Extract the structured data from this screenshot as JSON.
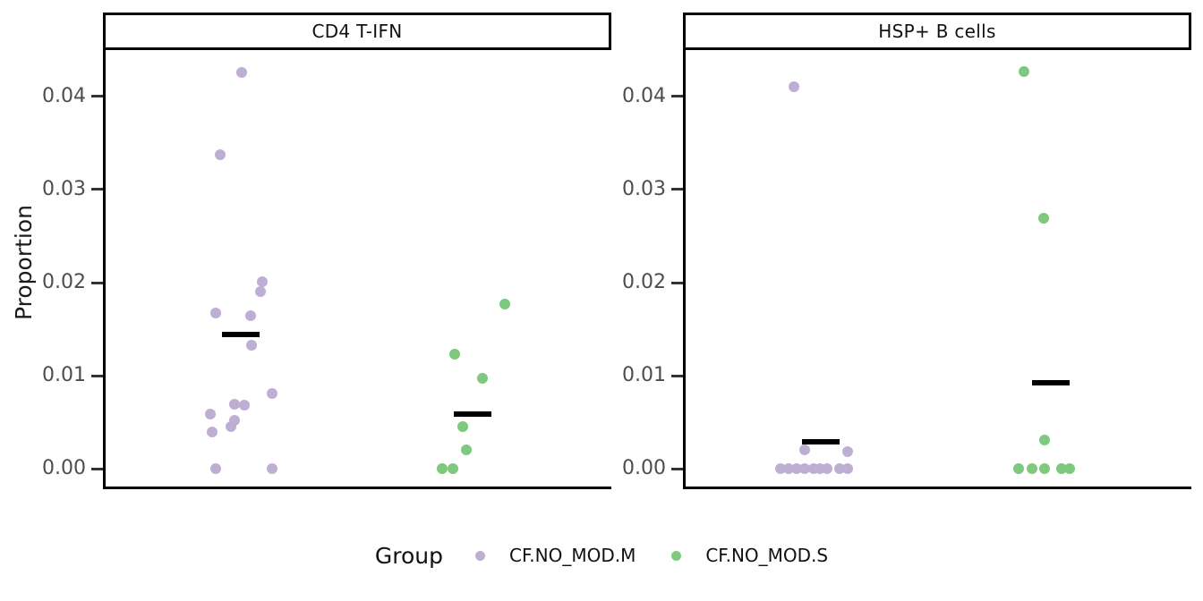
{
  "ylabel": "Proportion",
  "legend": {
    "title": "Group",
    "items": [
      {
        "label": "CF.NO_MOD.M",
        "color": "#beaed4"
      },
      {
        "label": "CF.NO_MOD.S",
        "color": "#7fc97f"
      }
    ]
  },
  "axis": {
    "yticks": [
      {
        "label": "0.00",
        "v": 0.0
      },
      {
        "label": "0.01",
        "v": 0.01
      },
      {
        "label": "0.02",
        "v": 0.02
      },
      {
        "label": "0.03",
        "v": 0.03
      },
      {
        "label": "0.04",
        "v": 0.04
      }
    ],
    "tick_color": "#333333",
    "label_color": "#4d4d4d",
    "line_color": "#000000"
  },
  "chart_data": [
    {
      "type": "scatter",
      "title": "CD4 T-IFN",
      "ylabel": "Proportion",
      "ylim": [
        -0.0023,
        0.045
      ],
      "grid": false,
      "point_format": [
        "x_fraction_of_panel",
        "proportion"
      ],
      "series": [
        {
          "name": "CF.NO_MOD.M",
          "color": "#beaed4",
          "median": {
            "x": 0.271,
            "v": 0.0144
          },
          "points": [
            [
              0.273,
              0.0426
            ],
            [
              0.23,
              0.0337
            ],
            [
              0.314,
              0.0201
            ],
            [
              0.31,
              0.019
            ],
            [
              0.222,
              0.0167
            ],
            [
              0.29,
              0.0164
            ],
            [
              0.293,
              0.0133
            ],
            [
              0.332,
              0.0081
            ],
            [
              0.259,
              0.0069
            ],
            [
              0.278,
              0.0068
            ],
            [
              0.211,
              0.0059
            ],
            [
              0.259,
              0.0052
            ],
            [
              0.252,
              0.0045
            ],
            [
              0.214,
              0.004
            ],
            [
              0.221,
              0.0
            ],
            [
              0.333,
              0.0
            ]
          ]
        },
        {
          "name": "CF.NO_MOD.S",
          "color": "#7fc97f",
          "median": {
            "x": 0.727,
            "v": 0.0059
          },
          "points": [
            [
              0.79,
              0.0177
            ],
            [
              0.692,
              0.0123
            ],
            [
              0.746,
              0.0097
            ],
            [
              0.708,
              0.0045
            ],
            [
              0.715,
              0.002
            ],
            [
              0.667,
              0.0
            ],
            [
              0.688,
              0.0
            ]
          ]
        }
      ]
    },
    {
      "type": "scatter",
      "title": "HSP+ B cells",
      "ylabel": "Proportion",
      "ylim": [
        -0.0023,
        0.045
      ],
      "grid": false,
      "point_format": [
        "x_fraction_of_panel",
        "proportion"
      ],
      "series": [
        {
          "name": "CF.NO_MOD.M",
          "color": "#beaed4",
          "median": {
            "x": 0.271,
            "v": 0.0029
          },
          "points": [
            [
              0.219,
              0.041
            ],
            [
              0.239,
              0.002
            ],
            [
              0.324,
              0.0019
            ],
            [
              0.192,
              0.0
            ],
            [
              0.208,
              0.0
            ],
            [
              0.224,
              0.0
            ],
            [
              0.239,
              0.0
            ],
            [
              0.257,
              0.0
            ],
            [
              0.269,
              0.0
            ],
            [
              0.283,
              0.0
            ],
            [
              0.308,
              0.0
            ],
            [
              0.324,
              0.0
            ]
          ]
        },
        {
          "name": "CF.NO_MOD.S",
          "color": "#7fc97f",
          "median": {
            "x": 0.724,
            "v": 0.0092
          },
          "points": [
            [
              0.67,
              0.0427
            ],
            [
              0.71,
              0.0269
            ],
            [
              0.712,
              0.0031
            ],
            [
              0.66,
              0.0
            ],
            [
              0.687,
              0.0
            ],
            [
              0.711,
              0.0
            ],
            [
              0.745,
              0.0
            ],
            [
              0.761,
              0.0
            ]
          ]
        }
      ]
    }
  ]
}
